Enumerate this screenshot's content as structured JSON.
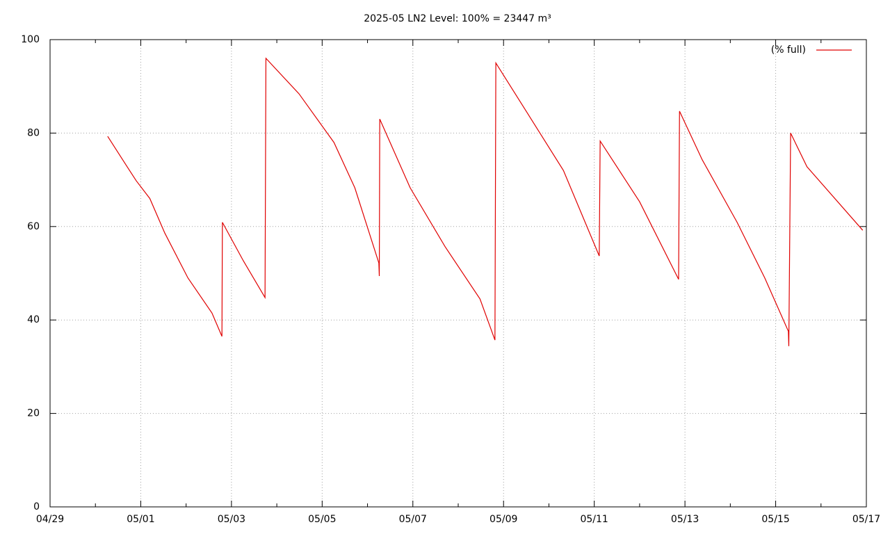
{
  "chart_data": {
    "type": "line",
    "title": "2025-05 LN2 Level: 100% = 23447 m³",
    "x": [
      1.27,
      1.7,
      1.9,
      2.2,
      2.53,
      3.04,
      3.57,
      3.79,
      3.8,
      4.26,
      4.74,
      4.76,
      5.49,
      6.26,
      6.72,
      7.25,
      7.26,
      7.27,
      7.94,
      8.71,
      9.48,
      9.81,
      9.83,
      10.55,
      11.32,
      12.11,
      12.13,
      13.0,
      13.86,
      13.88,
      14.38,
      15.15,
      15.76,
      16.28,
      16.29,
      16.33,
      16.69,
      17.92
    ],
    "series": [
      {
        "name": "(% full)",
        "color": "#e00000",
        "values": [
          79.3,
          72.8,
          69.8,
          66,
          58.6,
          49,
          41.5,
          36.5,
          60.9,
          52.7,
          44.8,
          96,
          88.4,
          78,
          68.3,
          52.2,
          49.4,
          83,
          68.3,
          55.7,
          44.5,
          35.7,
          95,
          83.9,
          72,
          53.7,
          78.3,
          65.3,
          48.7,
          84.7,
          74.3,
          60.9,
          49,
          37.6,
          34.4,
          80,
          72.8,
          59.2
        ]
      }
    ],
    "xlim": [
      0,
      18
    ],
    "xticks": [
      {
        "value": 0,
        "label": "04/29"
      },
      {
        "value": 2,
        "label": "05/01"
      },
      {
        "value": 4,
        "label": "05/03"
      },
      {
        "value": 6,
        "label": "05/05"
      },
      {
        "value": 8,
        "label": "05/07"
      },
      {
        "value": 10,
        "label": "05/09"
      },
      {
        "value": 12,
        "label": "05/11"
      },
      {
        "value": 14,
        "label": "05/13"
      },
      {
        "value": 16,
        "label": "05/15"
      },
      {
        "value": 18,
        "label": "05/17"
      }
    ],
    "ylim": [
      0,
      100
    ],
    "yticks": [
      0,
      20,
      40,
      60,
      80,
      100
    ],
    "grid": true,
    "legend": "top-right"
  }
}
